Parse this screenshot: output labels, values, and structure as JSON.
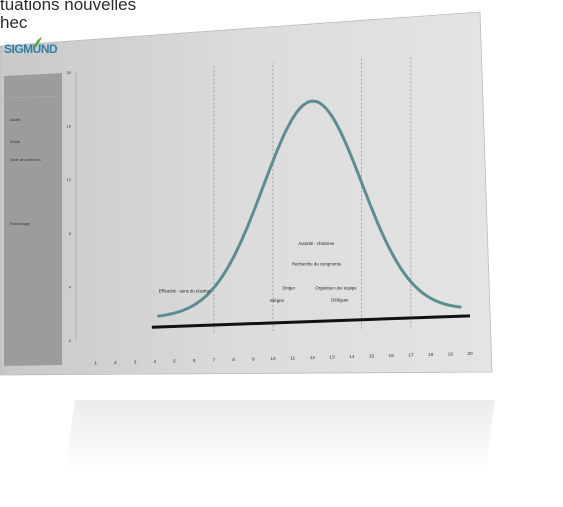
{
  "heading": {
    "line1": "tuations nouvelles",
    "line2": "hec"
  },
  "logo": {
    "text": "SIGMUND"
  },
  "sidebar": {
    "labels": [
      "Adulte",
      "Mobile",
      "Mode de connexion",
      "Pourcentage"
    ]
  },
  "chart_data": {
    "type": "line",
    "x": [
      1,
      2,
      3,
      4,
      5,
      6,
      7,
      8,
      9,
      10,
      11,
      12,
      13,
      14,
      15,
      16,
      17,
      18,
      19,
      20
    ],
    "y_ticks": [
      0,
      4,
      8,
      12,
      16,
      20
    ],
    "ylim": [
      0,
      20
    ],
    "xlim": [
      0,
      20
    ],
    "curve": {
      "type": "normal",
      "mean": 12,
      "peak": 17,
      "baseline": 1.5
    },
    "vlines": [
      7,
      10,
      14.5,
      17
    ],
    "annotations": [
      {
        "text": "Autorité - charisme",
        "x": 12.2,
        "y": 6.5
      },
      {
        "text": "Recherche du compromis",
        "x": 12.2,
        "y": 5
      },
      {
        "text": "Efficacité - sens du résultat",
        "x": 5.5,
        "y": 3.3
      },
      {
        "text": "Diriger",
        "x": 10.8,
        "y": 3.3
      },
      {
        "text": "Organiser une équipe",
        "x": 13.2,
        "y": 3.2
      },
      {
        "text": "Intégrer",
        "x": 10.2,
        "y": 2.4
      },
      {
        "text": "Déléguer",
        "x": 13.4,
        "y": 2.3
      }
    ],
    "colors": {
      "curve": "#5b8e93",
      "axis": "#111111",
      "grid": "#8a8a8a",
      "panel": "#d6d6d6"
    }
  }
}
